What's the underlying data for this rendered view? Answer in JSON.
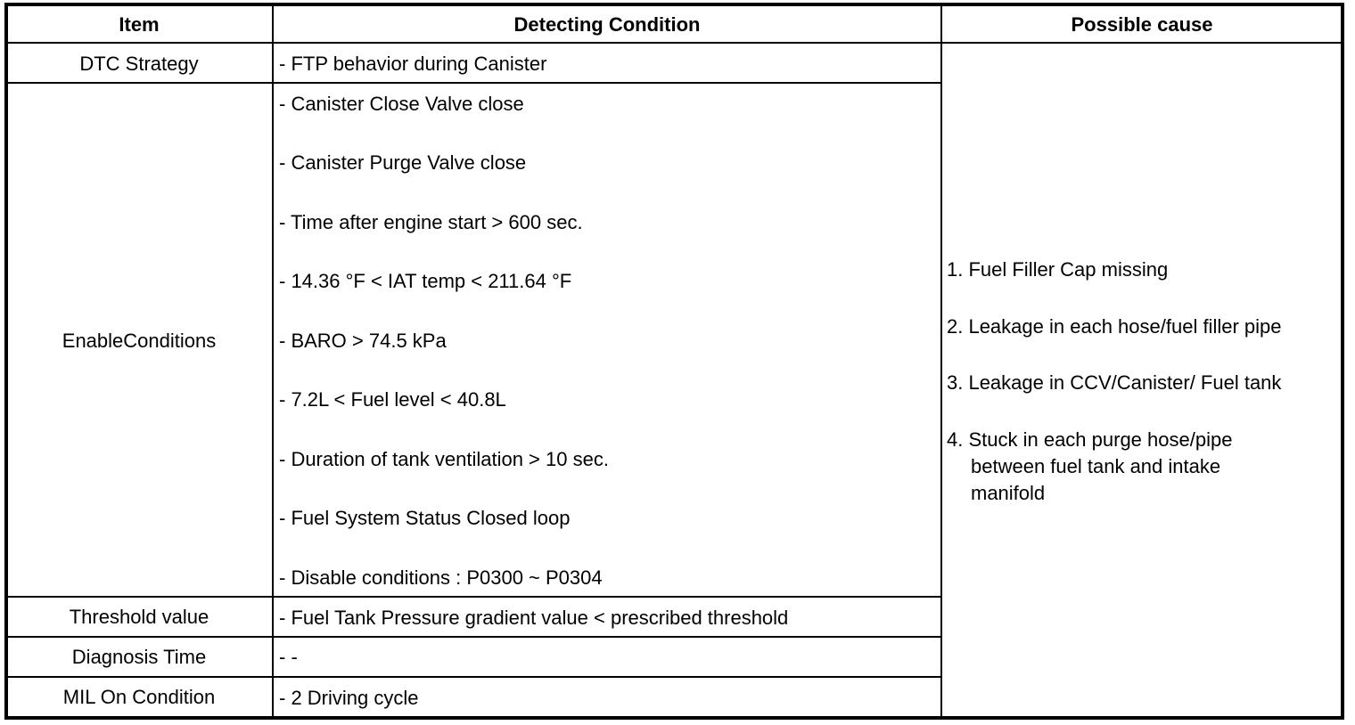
{
  "headers": {
    "item": "Item",
    "condition": "Detecting Condition",
    "cause": "Possible cause"
  },
  "rows": {
    "dtc": {
      "item": "DTC Strategy",
      "condition": "- FTP behavior during Canister"
    },
    "enable": {
      "item": "EnableConditions",
      "conditions": [
        "- Canister Close Valve close",
        "- Canister Purge Valve close",
        "- Time after engine start > 600 sec.",
        "- 14.36 °F < IAT temp < 211.64 °F",
        "- BARO > 74.5 kPa",
        "- 7.2L < Fuel level < 40.8L",
        "- Duration of tank ventilation > 10 sec.",
        "- Fuel System Status Closed loop",
        "- Disable conditions : P0300 ~ P0304"
      ]
    },
    "threshold": {
      "item": "Threshold value",
      "condition": "- Fuel Tank Pressure gradient value < prescribed threshold"
    },
    "diagnosis": {
      "item": "Diagnosis Time",
      "condition": "- -"
    },
    "mil": {
      "item": "MIL On Condition",
      "condition": "- 2 Driving cycle"
    }
  },
  "causes": [
    "1. Fuel Filler Cap missing",
    "2. Leakage in each hose/fuel filler pipe",
    "3. Leakage in CCV/Canister/ Fuel tank",
    "4. Stuck in each purge hose/pipe",
    "between fuel tank and intake",
    "manifold"
  ]
}
